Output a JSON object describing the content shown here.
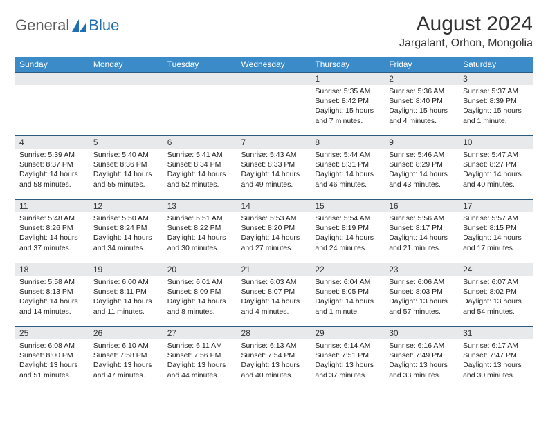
{
  "logo": {
    "text1": "General",
    "text2": "Blue",
    "color_general": "#5b5b5b",
    "color_blue": "#1f6fb2",
    "shape_color": "#1f6fb2"
  },
  "title": "August 2024",
  "location": "Jargalant, Orhon, Mongolia",
  "colors": {
    "header_bg": "#3b8bc9",
    "header_text": "#ffffff",
    "row_border": "#2c5a80",
    "daynum_bg": "#e7e9eb",
    "body_text": "#222222"
  },
  "day_headers": [
    "Sunday",
    "Monday",
    "Tuesday",
    "Wednesday",
    "Thursday",
    "Friday",
    "Saturday"
  ],
  "weeks": [
    [
      {
        "n": "",
        "lines": []
      },
      {
        "n": "",
        "lines": []
      },
      {
        "n": "",
        "lines": []
      },
      {
        "n": "",
        "lines": []
      },
      {
        "n": "1",
        "lines": [
          "Sunrise: 5:35 AM",
          "Sunset: 8:42 PM",
          "Daylight: 15 hours and 7 minutes."
        ]
      },
      {
        "n": "2",
        "lines": [
          "Sunrise: 5:36 AM",
          "Sunset: 8:40 PM",
          "Daylight: 15 hours and 4 minutes."
        ]
      },
      {
        "n": "3",
        "lines": [
          "Sunrise: 5:37 AM",
          "Sunset: 8:39 PM",
          "Daylight: 15 hours and 1 minute."
        ]
      }
    ],
    [
      {
        "n": "4",
        "lines": [
          "Sunrise: 5:39 AM",
          "Sunset: 8:37 PM",
          "Daylight: 14 hours and 58 minutes."
        ]
      },
      {
        "n": "5",
        "lines": [
          "Sunrise: 5:40 AM",
          "Sunset: 8:36 PM",
          "Daylight: 14 hours and 55 minutes."
        ]
      },
      {
        "n": "6",
        "lines": [
          "Sunrise: 5:41 AM",
          "Sunset: 8:34 PM",
          "Daylight: 14 hours and 52 minutes."
        ]
      },
      {
        "n": "7",
        "lines": [
          "Sunrise: 5:43 AM",
          "Sunset: 8:33 PM",
          "Daylight: 14 hours and 49 minutes."
        ]
      },
      {
        "n": "8",
        "lines": [
          "Sunrise: 5:44 AM",
          "Sunset: 8:31 PM",
          "Daylight: 14 hours and 46 minutes."
        ]
      },
      {
        "n": "9",
        "lines": [
          "Sunrise: 5:46 AM",
          "Sunset: 8:29 PM",
          "Daylight: 14 hours and 43 minutes."
        ]
      },
      {
        "n": "10",
        "lines": [
          "Sunrise: 5:47 AM",
          "Sunset: 8:27 PM",
          "Daylight: 14 hours and 40 minutes."
        ]
      }
    ],
    [
      {
        "n": "11",
        "lines": [
          "Sunrise: 5:48 AM",
          "Sunset: 8:26 PM",
          "Daylight: 14 hours and 37 minutes."
        ]
      },
      {
        "n": "12",
        "lines": [
          "Sunrise: 5:50 AM",
          "Sunset: 8:24 PM",
          "Daylight: 14 hours and 34 minutes."
        ]
      },
      {
        "n": "13",
        "lines": [
          "Sunrise: 5:51 AM",
          "Sunset: 8:22 PM",
          "Daylight: 14 hours and 30 minutes."
        ]
      },
      {
        "n": "14",
        "lines": [
          "Sunrise: 5:53 AM",
          "Sunset: 8:20 PM",
          "Daylight: 14 hours and 27 minutes."
        ]
      },
      {
        "n": "15",
        "lines": [
          "Sunrise: 5:54 AM",
          "Sunset: 8:19 PM",
          "Daylight: 14 hours and 24 minutes."
        ]
      },
      {
        "n": "16",
        "lines": [
          "Sunrise: 5:56 AM",
          "Sunset: 8:17 PM",
          "Daylight: 14 hours and 21 minutes."
        ]
      },
      {
        "n": "17",
        "lines": [
          "Sunrise: 5:57 AM",
          "Sunset: 8:15 PM",
          "Daylight: 14 hours and 17 minutes."
        ]
      }
    ],
    [
      {
        "n": "18",
        "lines": [
          "Sunrise: 5:58 AM",
          "Sunset: 8:13 PM",
          "Daylight: 14 hours and 14 minutes."
        ]
      },
      {
        "n": "19",
        "lines": [
          "Sunrise: 6:00 AM",
          "Sunset: 8:11 PM",
          "Daylight: 14 hours and 11 minutes."
        ]
      },
      {
        "n": "20",
        "lines": [
          "Sunrise: 6:01 AM",
          "Sunset: 8:09 PM",
          "Daylight: 14 hours and 8 minutes."
        ]
      },
      {
        "n": "21",
        "lines": [
          "Sunrise: 6:03 AM",
          "Sunset: 8:07 PM",
          "Daylight: 14 hours and 4 minutes."
        ]
      },
      {
        "n": "22",
        "lines": [
          "Sunrise: 6:04 AM",
          "Sunset: 8:05 PM",
          "Daylight: 14 hours and 1 minute."
        ]
      },
      {
        "n": "23",
        "lines": [
          "Sunrise: 6:06 AM",
          "Sunset: 8:03 PM",
          "Daylight: 13 hours and 57 minutes."
        ]
      },
      {
        "n": "24",
        "lines": [
          "Sunrise: 6:07 AM",
          "Sunset: 8:02 PM",
          "Daylight: 13 hours and 54 minutes."
        ]
      }
    ],
    [
      {
        "n": "25",
        "lines": [
          "Sunrise: 6:08 AM",
          "Sunset: 8:00 PM",
          "Daylight: 13 hours and 51 minutes."
        ]
      },
      {
        "n": "26",
        "lines": [
          "Sunrise: 6:10 AM",
          "Sunset: 7:58 PM",
          "Daylight: 13 hours and 47 minutes."
        ]
      },
      {
        "n": "27",
        "lines": [
          "Sunrise: 6:11 AM",
          "Sunset: 7:56 PM",
          "Daylight: 13 hours and 44 minutes."
        ]
      },
      {
        "n": "28",
        "lines": [
          "Sunrise: 6:13 AM",
          "Sunset: 7:54 PM",
          "Daylight: 13 hours and 40 minutes."
        ]
      },
      {
        "n": "29",
        "lines": [
          "Sunrise: 6:14 AM",
          "Sunset: 7:51 PM",
          "Daylight: 13 hours and 37 minutes."
        ]
      },
      {
        "n": "30",
        "lines": [
          "Sunrise: 6:16 AM",
          "Sunset: 7:49 PM",
          "Daylight: 13 hours and 33 minutes."
        ]
      },
      {
        "n": "31",
        "lines": [
          "Sunrise: 6:17 AM",
          "Sunset: 7:47 PM",
          "Daylight: 13 hours and 30 minutes."
        ]
      }
    ]
  ]
}
